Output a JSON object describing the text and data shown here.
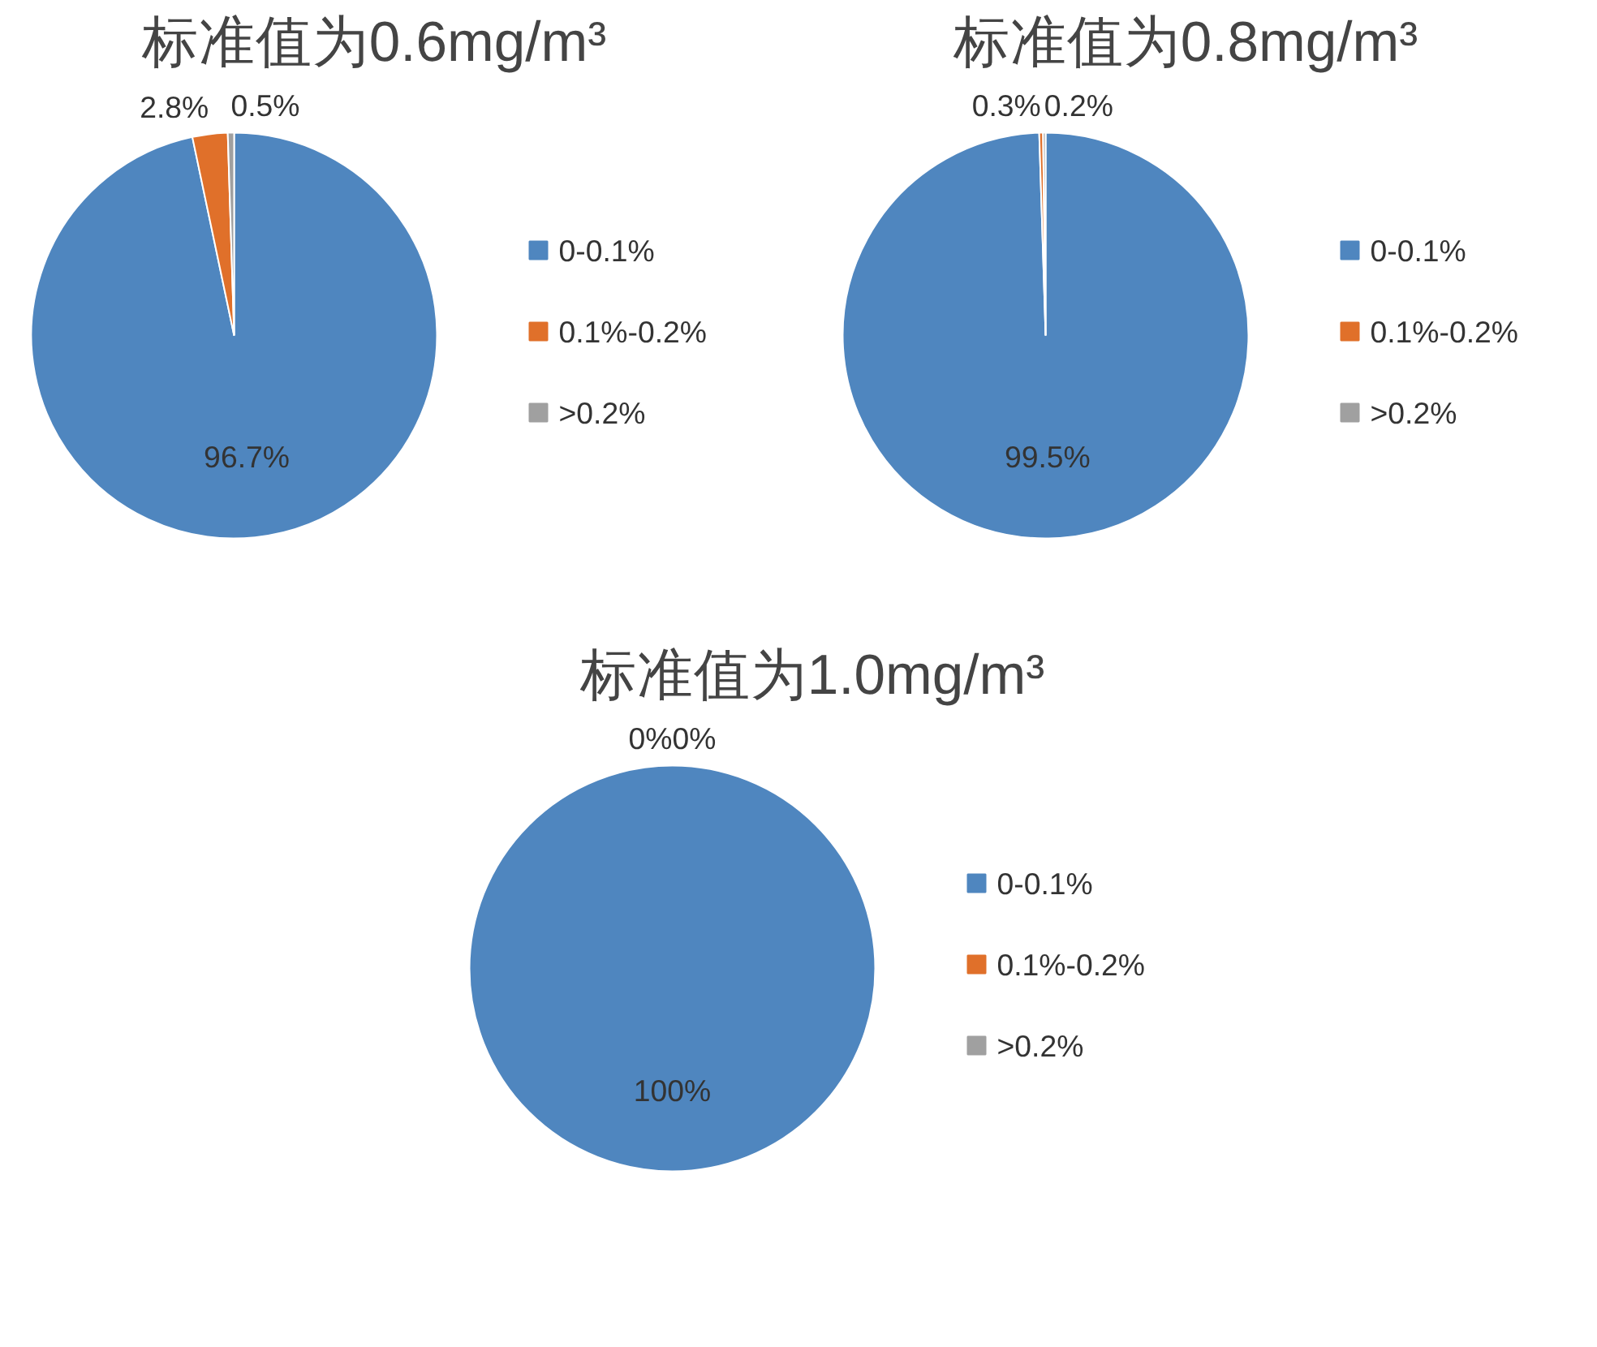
{
  "chart_data": [
    {
      "type": "pie",
      "title": "标准值为0.6mg/m³",
      "categories": [
        "0-0.1%",
        "0.1%-0.2%",
        ">0.2%"
      ],
      "values": [
        96.7,
        2.8,
        0.5
      ],
      "colors": [
        "#4f86bf",
        "#e0702a",
        "#a0a0a0"
      ],
      "value_labels": [
        "96.7%",
        "2.8%",
        "0.5%"
      ],
      "legend": "right"
    },
    {
      "type": "pie",
      "title": "标准值为0.8mg/m³",
      "categories": [
        "0-0.1%",
        "0.1%-0.2%",
        ">0.2%"
      ],
      "values": [
        99.5,
        0.3,
        0.2
      ],
      "colors": [
        "#4f86bf",
        "#e0702a",
        "#a0a0a0"
      ],
      "value_labels": [
        "99.5%",
        "0.3%",
        "0.2%"
      ],
      "legend": "right"
    },
    {
      "type": "pie",
      "title": "标准值为1.0mg/m³",
      "categories": [
        "0-0.1%",
        "0.1%-0.2%",
        ">0.2%"
      ],
      "values": [
        100,
        0,
        0
      ],
      "colors": [
        "#4f86bf",
        "#e0702a",
        "#a0a0a0"
      ],
      "value_labels": [
        "100%",
        "0%",
        "0%"
      ],
      "legend": "right"
    }
  ]
}
